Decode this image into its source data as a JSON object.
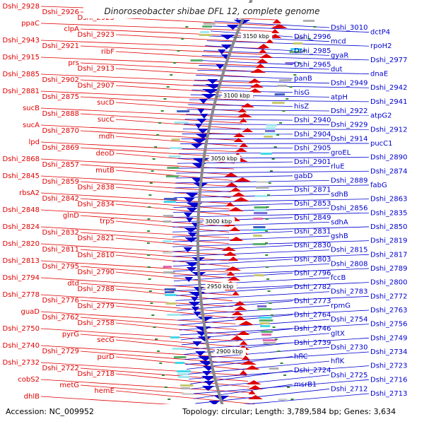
{
  "title": "Dinoroseobacter shibae DFL 12, complete genome",
  "footer": {
    "accession": "Accession: NC_009952",
    "summary": "Topology: circular; Length: 3,789,584 bp; Genes: 3,634"
  },
  "colors": {
    "forward": "#e00000",
    "reverse": "#0000d0",
    "backbone": "#888888",
    "marker": "#2a8a2a"
  },
  "ticks": [
    "3150 kbp",
    "3100 kbp",
    "3050 kbp",
    "3000 kbp",
    "2950 kbp",
    "2900 kbp"
  ],
  "left_labels": [
    "Dshi_2928",
    "Dshi_2926",
    "Dshi_2925",
    "ppaC",
    "clpA",
    "Dshi_2923",
    "Dshi_2943",
    "Dshi_2921",
    "ribF",
    "Dshi_2915",
    "prs",
    "Dshi_2913",
    "Dshi_2885",
    "Dshi_2902",
    "Dshi_2907",
    "Dshi_2881",
    "Dshi_2875",
    "sucD",
    "sucB",
    "Dshi_2888",
    "sucC",
    "sucA",
    "Dshi_2870",
    "mdh",
    "lpd",
    "Dshi_2869",
    "deoD",
    "Dshi_2868",
    "Dshi_2857",
    "mutB",
    "Dshi_2845",
    "Dshi_2859",
    "Dshi_2838",
    "rbsA2",
    "Dshi_2842",
    "Dshi_2834",
    "Dshi_2848",
    "glnD",
    "trpS",
    "Dshi_2824",
    "Dshi_2832",
    "Dshi_2821",
    "Dshi_2820",
    "Dshi_2811",
    "Dshi_2810",
    "Dshi_2813",
    "Dshi_2795",
    "Dshi_2790",
    "Dshi_2794",
    "dtd",
    "Dshi_2788",
    "Dshi_2778",
    "Dshi_2776",
    "Dshi_2779",
    "guaD",
    "Dshi_2762",
    "Dshi_2758",
    "Dshi_2750",
    "pyrG",
    "secG",
    "Dshi_2740",
    "Dshi_2729",
    "purD",
    "Dshi_2732",
    "Dshi_2722",
    "Dshi_2718",
    "cobS2",
    "metG",
    "hemE",
    "dhlB"
  ],
  "right_labels": [
    "Dshi_3010",
    "dctP4",
    "Dshi_2996",
    "mcd",
    "rpoH2",
    "Dshi_2985",
    "gyaR",
    "Dshi_2977",
    "Dshi_2965",
    "dut",
    "dnaE",
    "panB",
    "Dshi_2949",
    "Dshi_2942",
    "hisG",
    "atpH",
    "Dshi_2941",
    "hisZ",
    "Dshi_2922",
    "atpG2",
    "Dshi_2940",
    "Dshi_2929",
    "Dshi_2912",
    "Dshi_2904",
    "Dshi_2914",
    "pucC1",
    "Dshi_2905",
    "groEL",
    "Dshi_2890",
    "Dshi_2901",
    "rluE",
    "Dshi_2874",
    "gabD",
    "Dshi_2889",
    "fabG",
    "Dshi_2871",
    "sdhB",
    "Dshi_2863",
    "Dshi_2853",
    "Dshi_2856",
    "Dshi_2835",
    "Dshi_2849",
    "sdhA",
    "Dshi_2850",
    "Dshi_2831",
    "gshB",
    "Dshi_2819",
    "Dshi_2830",
    "Dshi_2815",
    "Dshi_2817",
    "Dshi_2803",
    "Dshi_2808",
    "Dshi_2789",
    "Dshi_2796",
    "fccB",
    "Dshi_2800",
    "Dshi_2782",
    "Dshi_2783",
    "Dshi_2772",
    "Dshi_2773",
    "rpmG",
    "Dshi_2763",
    "Dshi_2764",
    "Dshi_2754",
    "Dshi_2756",
    "Dshi_2746",
    "gltX",
    "Dshi_2749",
    "Dshi_2739",
    "Dshi_2730",
    "Dshi_2734",
    "hflC",
    "hflK",
    "Dshi_2723",
    "Dshi_2724",
    "Dshi_2725",
    "Dshi_2716",
    "msrB1",
    "Dshi_2712",
    "Dshi_2713"
  ]
}
